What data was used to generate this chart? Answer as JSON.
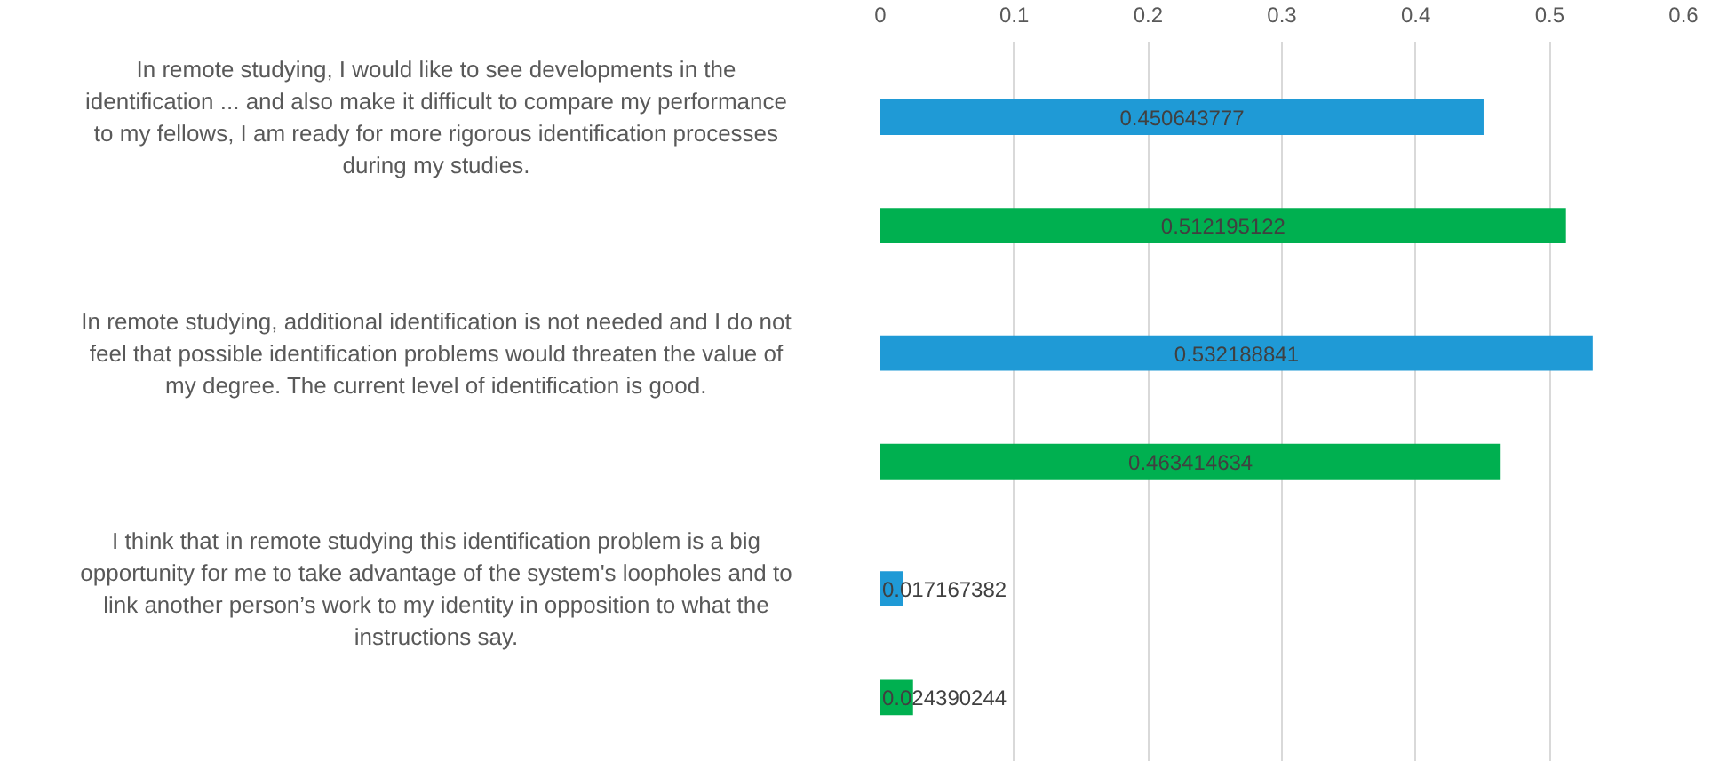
{
  "chart_data": {
    "type": "bar",
    "orientation": "horizontal",
    "categories": [
      "In remote studying, I would like to see developments in the identification ... and also make it difficult to compare my performance to my fellows, I am ready for more rigorous identification processes during my studies.",
      "In remote studying, additional identification is not needed and I do not feel that possible identification problems would threaten the value of my degree. The current level of identification is good.",
      "I think that in remote studying this identification problem is a big opportunity for me to take advantage of the system's loopholes and to link another person’s work to my identity in opposition to what the instructions say."
    ],
    "series": [
      {
        "color": "#1f9ad6",
        "values": [
          0.450643777,
          0.532188841,
          0.017167382
        ]
      },
      {
        "color": "#00b050",
        "values": [
          0.512195122,
          0.463414634,
          0.024390244
        ]
      }
    ],
    "xlim": [
      0,
      0.6
    ],
    "xticks": [
      0,
      0.1,
      0.2,
      0.3,
      0.4,
      0.5,
      0.6
    ],
    "grid": "x",
    "data_labels": true
  }
}
